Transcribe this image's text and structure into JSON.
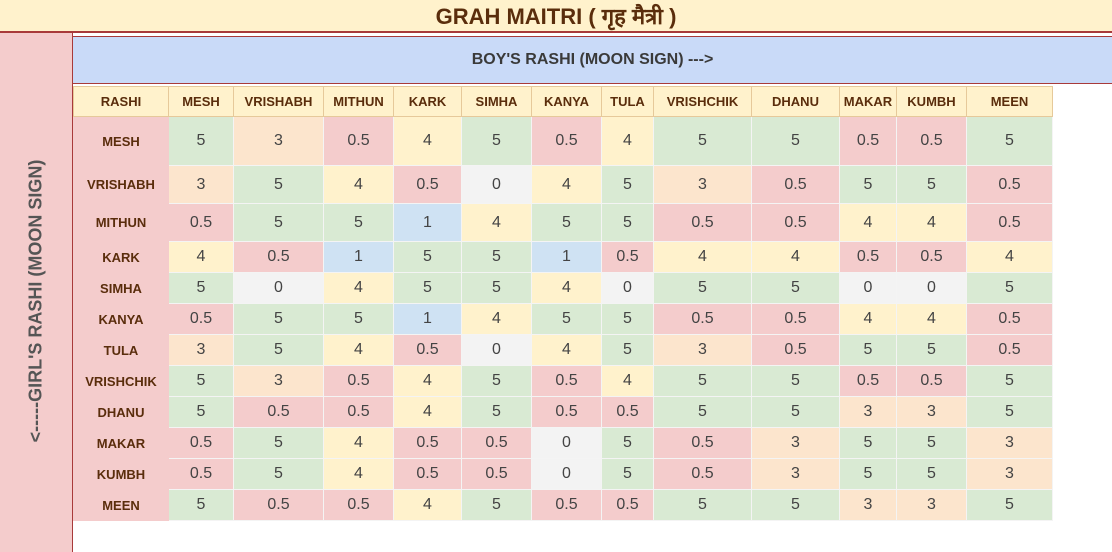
{
  "title": "GRAH MAITRI ( गृह मैत्री )",
  "boy_axis_label": "BOY'S RASHI (MOON SIGN) --->",
  "girl_axis_label": "<-----GIRL'S RASHI (MOON SIGN)",
  "corner_label": "RASHI",
  "columns": [
    "MESH",
    "VRISHABH",
    "MITHUN",
    "KARK",
    "SIMHA",
    "KANYA",
    "TULA",
    "VRISHCHIK",
    "DHANU",
    "MAKAR",
    "KUMBH",
    "MEEN"
  ],
  "rows": [
    {
      "label": "MESH",
      "values": [
        "5",
        "3",
        "0.5",
        "4",
        "5",
        "0.5",
        "4",
        "5",
        "5",
        "0.5",
        "0.5",
        "5"
      ]
    },
    {
      "label": "VRISHABH",
      "values": [
        "3",
        "5",
        "4",
        "0.5",
        "0",
        "4",
        "5",
        "3",
        "0.5",
        "5",
        "5",
        "0.5"
      ]
    },
    {
      "label": "MITHUN",
      "values": [
        "0.5",
        "5",
        "5",
        "1",
        "4",
        "5",
        "5",
        "0.5",
        "0.5",
        "4",
        "4",
        "0.5"
      ]
    },
    {
      "label": "KARK",
      "values": [
        "4",
        "0.5",
        "1",
        "5",
        "5",
        "1",
        "0.5",
        "4",
        "4",
        "0.5",
        "0.5",
        "4"
      ]
    },
    {
      "label": "SIMHA",
      "values": [
        "5",
        "0",
        "4",
        "5",
        "5",
        "4",
        "0",
        "5",
        "5",
        "0",
        "0",
        "5"
      ]
    },
    {
      "label": "KANYA",
      "values": [
        "0.5",
        "5",
        "5",
        "1",
        "4",
        "5",
        "5",
        "0.5",
        "0.5",
        "4",
        "4",
        "0.5"
      ]
    },
    {
      "label": "TULA",
      "values": [
        "3",
        "5",
        "4",
        "0.5",
        "0",
        "4",
        "5",
        "3",
        "0.5",
        "5",
        "5",
        "0.5"
      ]
    },
    {
      "label": "VRISHCHIK",
      "values": [
        "5",
        "3",
        "0.5",
        "4",
        "5",
        "0.5",
        "4",
        "5",
        "5",
        "0.5",
        "0.5",
        "5"
      ]
    },
    {
      "label": "DHANU",
      "values": [
        "5",
        "0.5",
        "0.5",
        "4",
        "5",
        "0.5",
        "0.5",
        "5",
        "5",
        "3",
        "3",
        "5"
      ]
    },
    {
      "label": "MAKAR",
      "values": [
        "0.5",
        "5",
        "4",
        "0.5",
        "0.5",
        "0",
        "5",
        "0.5",
        "3",
        "5",
        "5",
        "3"
      ]
    },
    {
      "label": "KUMBH",
      "values": [
        "0.5",
        "5",
        "4",
        "0.5",
        "0.5",
        "0",
        "5",
        "0.5",
        "3",
        "5",
        "5",
        "3"
      ]
    },
    {
      "label": "MEEN",
      "values": [
        "5",
        "0.5",
        "0.5",
        "4",
        "5",
        "0.5",
        "0.5",
        "5",
        "5",
        "3",
        "3",
        "5"
      ]
    }
  ],
  "cell_colors": {
    "5": "#d9ead3",
    "4": "#fff2cc",
    "3": "#fce5cd",
    "0.5": "#f4cccc",
    "1": "#cfe2f3",
    "0": "#f3f3f3"
  }
}
